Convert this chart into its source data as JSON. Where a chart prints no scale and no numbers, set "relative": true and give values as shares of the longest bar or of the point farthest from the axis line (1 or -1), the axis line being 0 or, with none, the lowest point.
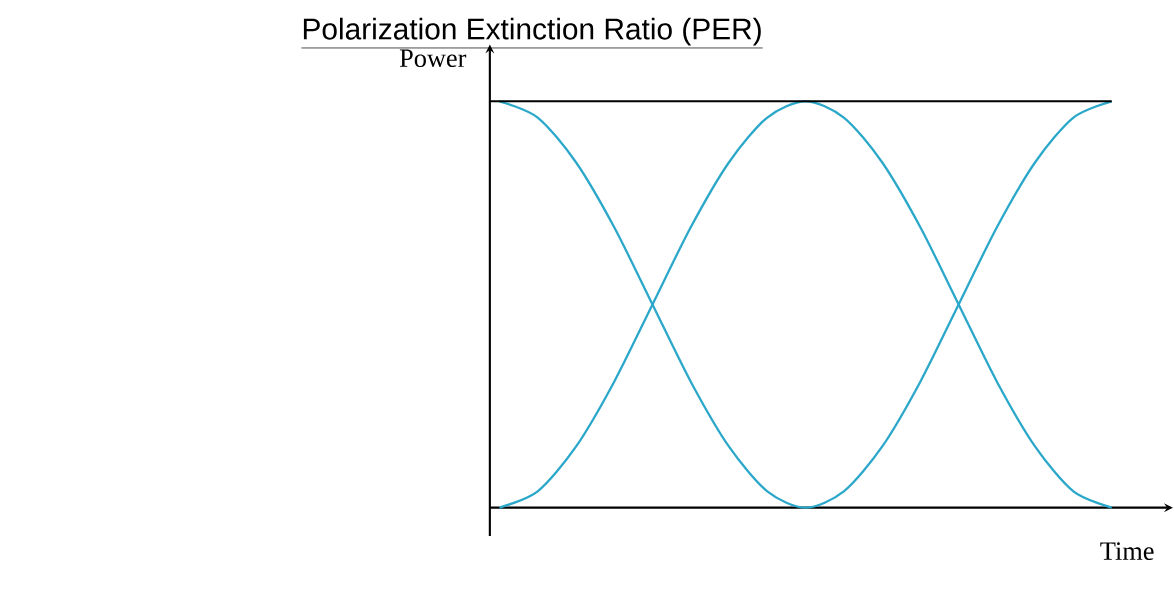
{
  "chart_data": {
    "type": "line",
    "title": "Polarization Extinction Ratio (PER)",
    "xlabel": "Time",
    "ylabel": "Power",
    "relative": true,
    "tick_labels": false,
    "categories": [
      null,
      null,
      null,
      null,
      null,
      null,
      null,
      null,
      null,
      null,
      null,
      null,
      null,
      null,
      null,
      null,
      null
    ],
    "series": [
      {
        "color": "#2aa7c9",
        "values": [
          1,
          0.96,
          0.85,
          0.69,
          0.5,
          0.31,
          0.15,
          0.04,
          0,
          0.04,
          0.15,
          0.31,
          0.5,
          0.69,
          0.85,
          0.96,
          1
        ]
      },
      {
        "color": "#2aa7c9",
        "values": [
          0,
          0.04,
          0.15,
          0.31,
          0.5,
          0.69,
          0.85,
          0.96,
          1,
          0.96,
          0.85,
          0.69,
          0.5,
          0.31,
          0.15,
          0.04,
          0
        ]
      }
    ],
    "ref_lines": [
      {
        "axis": "y",
        "value": 1,
        "color": "#000000"
      }
    ]
  }
}
